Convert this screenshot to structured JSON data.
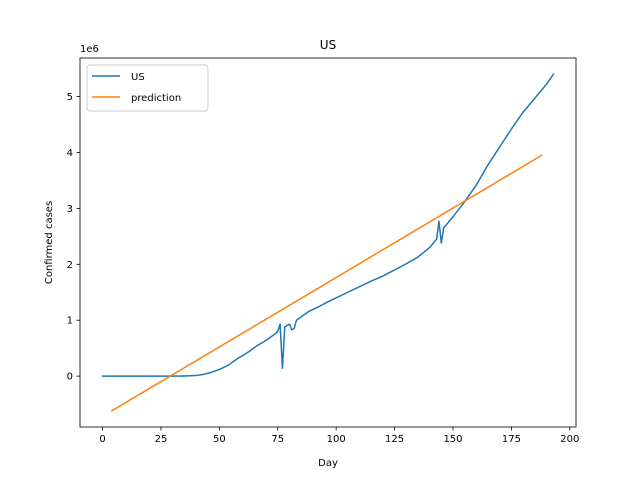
{
  "chart_data": {
    "type": "line",
    "title": "US",
    "xlabel": "Day",
    "ylabel": "Confirmed cases",
    "y_offset_text": "1e6",
    "xlim": [
      -9.65,
      202.65
    ],
    "ylim": [
      -0.91,
      5.69
    ],
    "y_scale_factor": 1000000,
    "xticks": [
      0,
      25,
      50,
      75,
      100,
      125,
      150,
      175,
      200
    ],
    "yticks": [
      0,
      1,
      2,
      3,
      4,
      5
    ],
    "grid": false,
    "legend": {
      "position": "top-left",
      "entries": [
        "US",
        "prediction"
      ]
    },
    "series": [
      {
        "name": "US",
        "color": "#1f77b4",
        "points": [
          [
            0,
            0.0
          ],
          [
            10,
            0.0
          ],
          [
            20,
            0.0
          ],
          [
            30,
            0.0
          ],
          [
            35,
            0.003
          ],
          [
            40,
            0.01
          ],
          [
            43,
            0.03
          ],
          [
            46,
            0.06
          ],
          [
            50,
            0.12
          ],
          [
            54,
            0.2
          ],
          [
            58,
            0.32
          ],
          [
            62,
            0.42
          ],
          [
            66,
            0.54
          ],
          [
            70,
            0.64
          ],
          [
            74,
            0.76
          ],
          [
            75,
            0.8
          ],
          [
            76,
            0.93
          ],
          [
            77,
            0.14
          ],
          [
            78,
            0.88
          ],
          [
            80,
            0.93
          ],
          [
            81,
            0.83
          ],
          [
            82,
            0.85
          ],
          [
            83,
            1.0
          ],
          [
            85,
            1.06
          ],
          [
            88,
            1.15
          ],
          [
            92,
            1.23
          ],
          [
            96,
            1.32
          ],
          [
            100,
            1.4
          ],
          [
            105,
            1.5
          ],
          [
            110,
            1.6
          ],
          [
            115,
            1.7
          ],
          [
            120,
            1.79
          ],
          [
            125,
            1.9
          ],
          [
            130,
            2.01
          ],
          [
            135,
            2.13
          ],
          [
            140,
            2.3
          ],
          [
            143,
            2.45
          ],
          [
            144,
            2.77
          ],
          [
            145,
            2.38
          ],
          [
            146,
            2.65
          ],
          [
            150,
            2.85
          ],
          [
            155,
            3.12
          ],
          [
            160,
            3.42
          ],
          [
            165,
            3.78
          ],
          [
            170,
            4.1
          ],
          [
            175,
            4.42
          ],
          [
            180,
            4.72
          ],
          [
            185,
            4.97
          ],
          [
            190,
            5.22
          ],
          [
            193,
            5.4
          ]
        ]
      },
      {
        "name": "prediction",
        "color": "#ff7f0e",
        "points": [
          [
            4,
            -0.62
          ],
          [
            188,
            3.95
          ]
        ]
      }
    ]
  }
}
